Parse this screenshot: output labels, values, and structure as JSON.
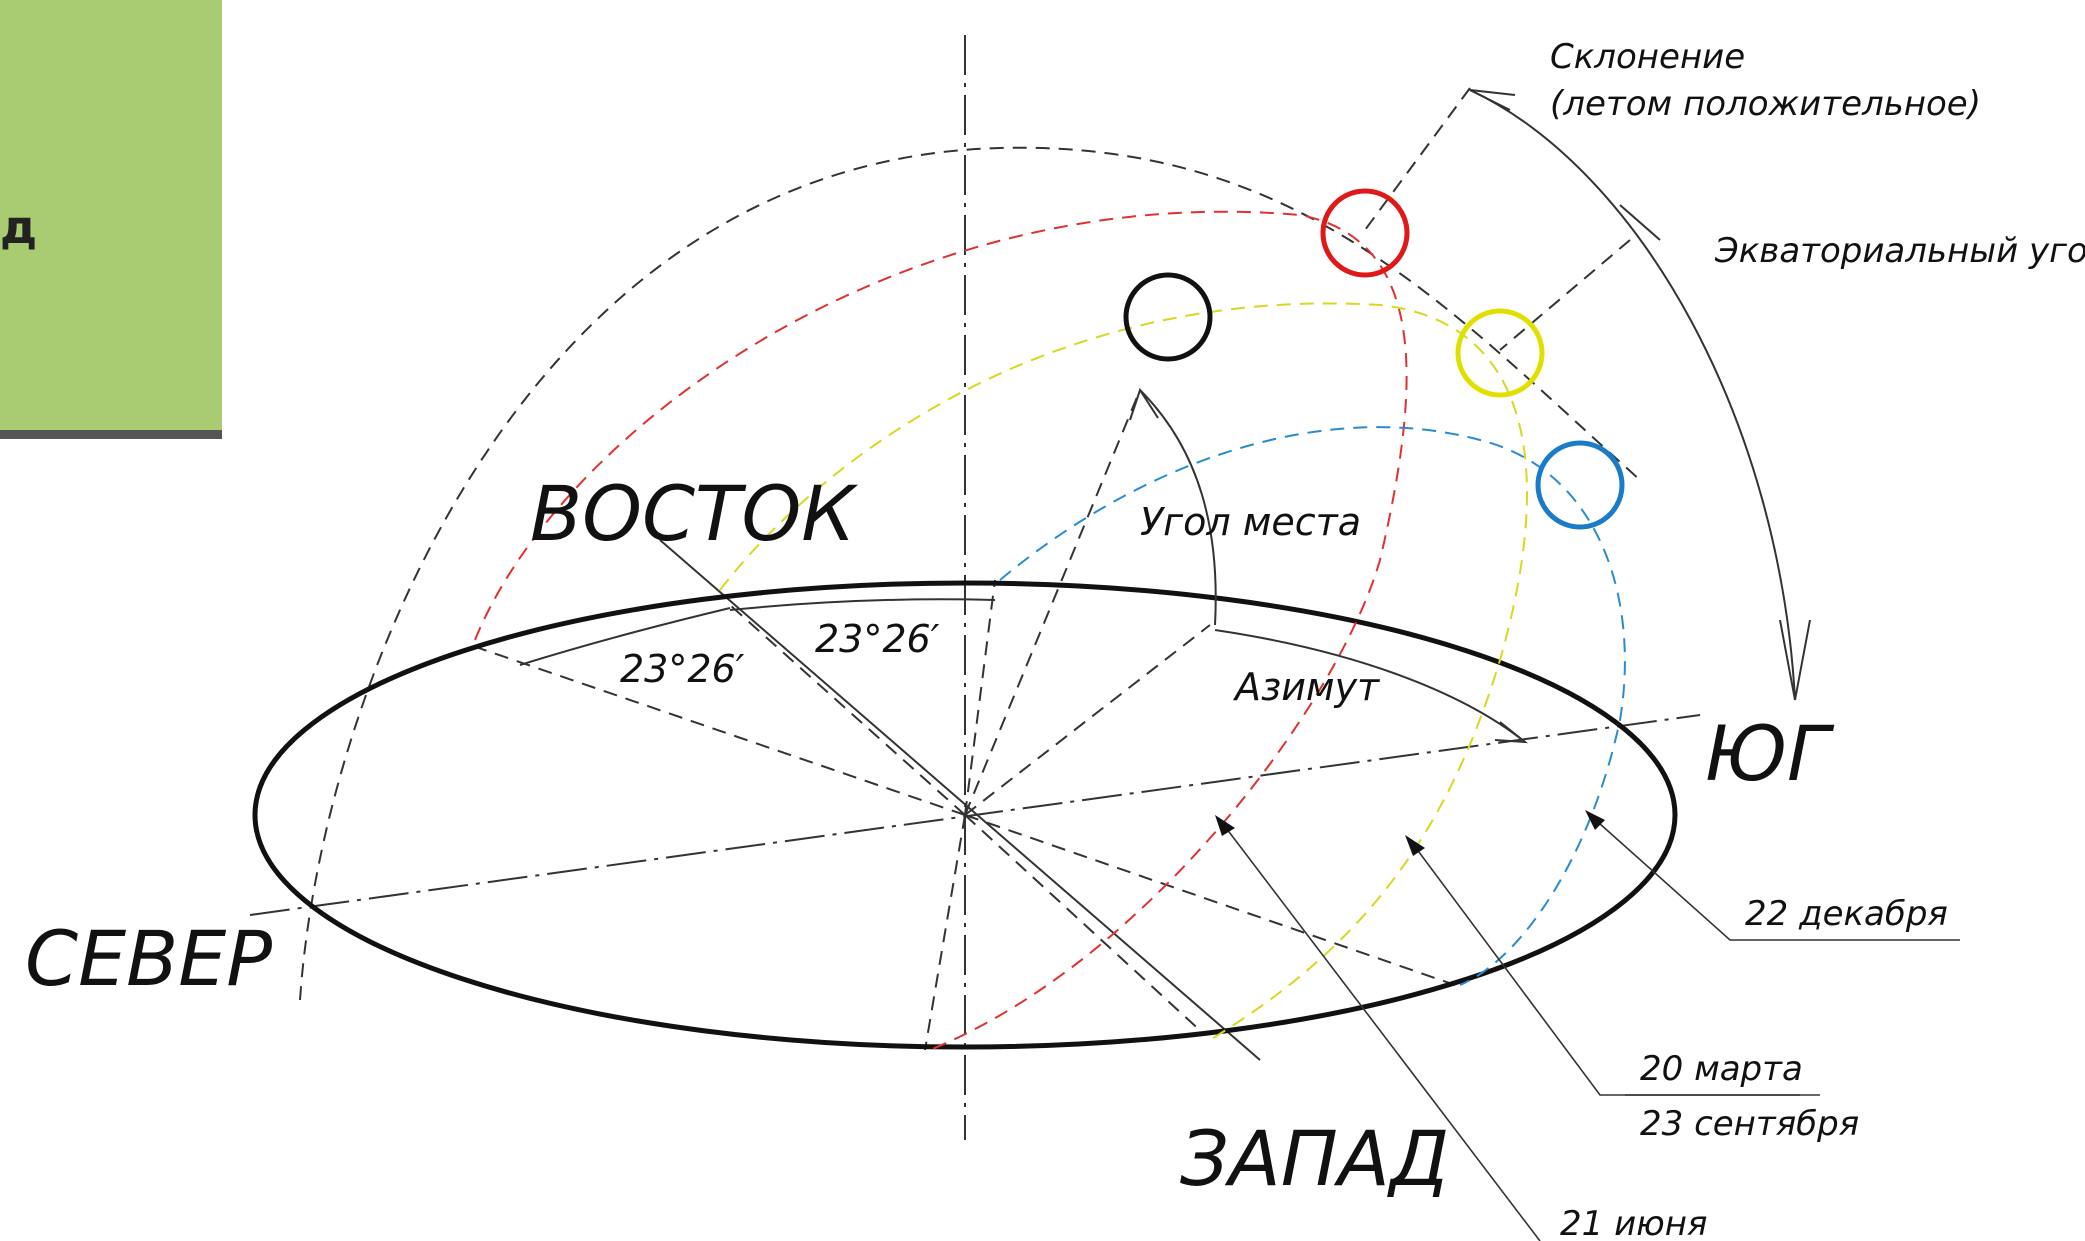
{
  "side_panel": {
    "letter": "д"
  },
  "directions": {
    "north": "СЕВЕР",
    "east": "ВОСТОК",
    "south": "ЮГ",
    "west": "ЗАПАД"
  },
  "angles": {
    "tilt_a": "23°26′",
    "tilt_b": "23°26′",
    "elevation": "Угол места",
    "azimuth": "Азимут"
  },
  "annotations": {
    "declination_1": "Склонение",
    "declination_2": "(летом положительное)",
    "equatorial_angle": "Экваториальный угол"
  },
  "dates": {
    "winter": "22 декабря",
    "equinox_spring": "20 марта",
    "equinox_autumn": "23 сентября",
    "summer": "21 июня"
  },
  "colors": {
    "summer_path": "#e03030",
    "equinox_path": "#d8d820",
    "winter_path": "#2a8ccf",
    "noon_sun": "#e01818",
    "equinox_sun": "#e0e000",
    "winter_sun": "#1a7cc8",
    "current_sun": "#111111"
  }
}
